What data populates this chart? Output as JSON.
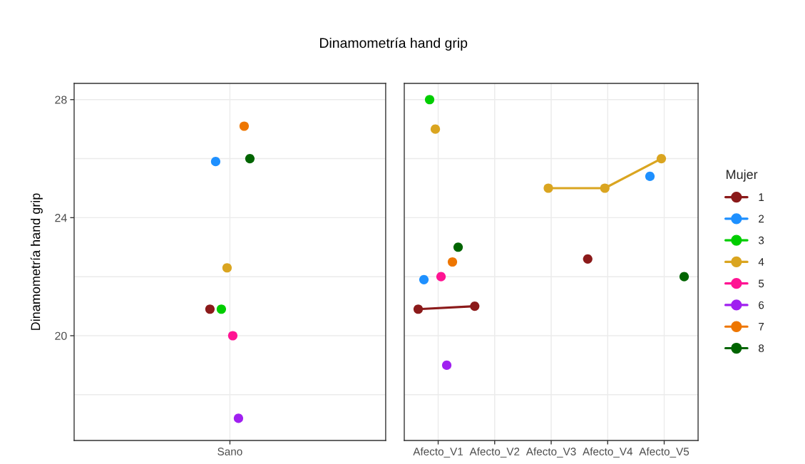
{
  "chart_data": [
    {
      "type": "scatter",
      "title": "Dinamometría hand grip",
      "ylabel": "Dinamometría hand grip",
      "categories": [
        "Sano"
      ],
      "ylim": [
        16.45,
        28.55
      ],
      "yticks": [
        20,
        24,
        28
      ],
      "grid": true,
      "marker": "circle",
      "series": [
        {
          "color": "#8b1a1a",
          "values": [
            20.9
          ]
        },
        {
          "color": "#1e90ff",
          "values": [
            25.9
          ]
        },
        {
          "color": "#00cd00",
          "values": [
            20.9
          ]
        },
        {
          "color": "#daa520",
          "values": [
            22.3
          ]
        },
        {
          "color": "#ff1493",
          "values": [
            20.0
          ]
        },
        {
          "color": "#a020f0",
          "values": [
            17.2
          ]
        },
        {
          "color": "#ee7600",
          "values": [
            27.1
          ]
        },
        {
          "color": "#006400",
          "values": [
            26.0
          ]
        }
      ]
    },
    {
      "type": "line",
      "categories": [
        "Afecto_V1",
        "Afecto_V2",
        "Afecto_V3",
        "Afecto_V4",
        "Afecto_V5"
      ],
      "ylim": [
        16.45,
        28.55
      ],
      "yticks": [
        20,
        24,
        28
      ],
      "tick_labels": "x",
      "grid": true,
      "marker": "circle",
      "line_style": "solid",
      "legend": "right",
      "legend_title": "Mujer",
      "series": [
        {
          "name": "1",
          "color": "#8b1a1a",
          "values": [
            20.9,
            21.0,
            null,
            22.6,
            null
          ]
        },
        {
          "name": "2",
          "type": "scatter",
          "color": "#1e90ff",
          "values": [
            21.9,
            null,
            null,
            null,
            25.4
          ]
        },
        {
          "name": "3",
          "type": "scatter",
          "color": "#00cd00",
          "values": [
            28.0,
            null,
            null,
            null,
            null
          ]
        },
        {
          "name": "4",
          "color": "#daa520",
          "values": [
            27.0,
            null,
            25.0,
            25.0,
            26.0
          ]
        },
        {
          "name": "5",
          "type": "scatter",
          "color": "#ff1493",
          "values": [
            22.0,
            null,
            null,
            null,
            null
          ]
        },
        {
          "name": "6",
          "type": "scatter",
          "color": "#a020f0",
          "values": [
            19.0,
            null,
            null,
            null,
            null
          ]
        },
        {
          "name": "7",
          "type": "scatter",
          "color": "#ee7600",
          "values": [
            22.5,
            null,
            null,
            null,
            null
          ]
        },
        {
          "name": "8",
          "type": "scatter",
          "color": "#006400",
          "values": [
            23.0,
            null,
            null,
            null,
            22.0
          ]
        }
      ]
    }
  ]
}
